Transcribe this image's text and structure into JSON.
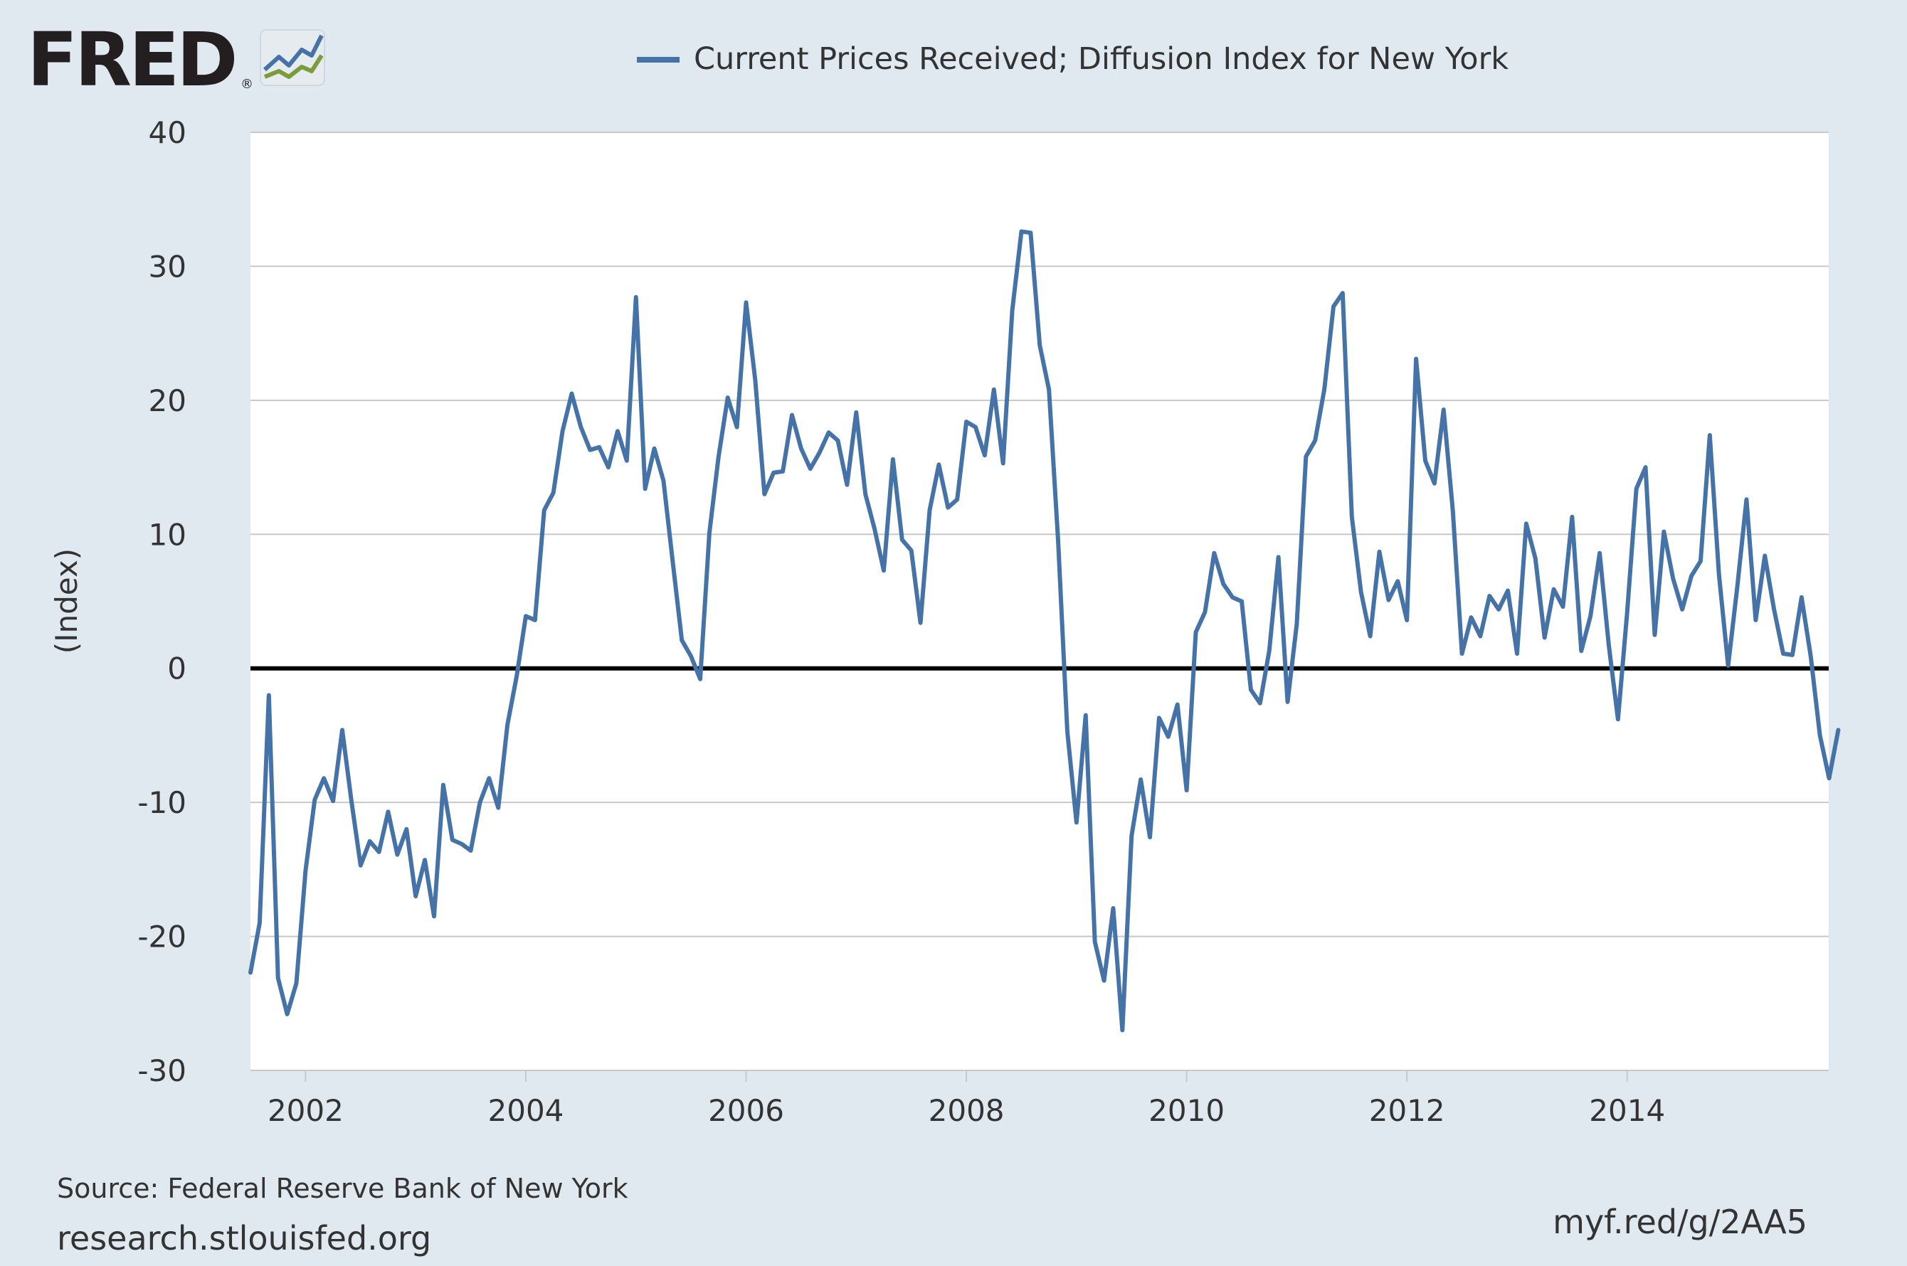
{
  "brand": {
    "name": "FRED",
    "registered_mark": "®"
  },
  "legend": {
    "label": "Current Prices Received; Diffusion Index for New York"
  },
  "colors": {
    "background": "#e1e9f0",
    "plot_background": "#ffffff",
    "series_line": "#4572a7",
    "zero_line": "#000000",
    "grid": "#c8c8c8",
    "brand_text": "#231f20",
    "logo_blue": "#4572a7",
    "logo_green": "#7a9c3b",
    "text": "#333333"
  },
  "footer": {
    "source": "Source: Federal Reserve Bank of New York",
    "site": "research.stlouisfed.org",
    "short_url": "myf.red/g/2AA5"
  },
  "chart_data": {
    "type": "line",
    "title": "Current Prices Received; Diffusion Index for New York",
    "xlabel": "",
    "ylabel": "(Index)",
    "ylim": [
      -30,
      40
    ],
    "xlim": [
      2001.5,
      2015.83
    ],
    "yticks": [
      -30,
      -20,
      -10,
      0,
      10,
      20,
      30,
      40
    ],
    "xticks": [
      2002,
      2004,
      2006,
      2008,
      2010,
      2012,
      2014
    ],
    "grid": true,
    "zero_line": true,
    "legend_position": "top-center",
    "series": [
      {
        "name": "Current Prices Received; Diffusion Index for New York",
        "frequency": "monthly",
        "start": "2001-07",
        "values": [
          -22.7,
          -19.0,
          -2.0,
          -23.1,
          -25.8,
          -23.5,
          -15.1,
          -9.8,
          -8.2,
          -9.9,
          -4.6,
          -9.9,
          -14.7,
          -12.9,
          -13.7,
          -10.7,
          -13.9,
          -12.0,
          -17.0,
          -14.3,
          -18.5,
          -8.7,
          -12.8,
          -13.1,
          -13.6,
          -10.0,
          -8.2,
          -10.4,
          -4.2,
          -0.6,
          3.9,
          3.6,
          11.8,
          13.1,
          17.7,
          20.5,
          18.0,
          16.3,
          16.5,
          15.0,
          17.7,
          15.5,
          27.7,
          13.4,
          16.4,
          14.0,
          8.0,
          2.1,
          0.9,
          -0.8,
          10.1,
          15.8,
          20.2,
          18.0,
          27.3,
          21.5,
          13.0,
          14.6,
          14.7,
          18.9,
          16.4,
          14.9,
          16.1,
          17.6,
          17.0,
          13.7,
          19.1,
          13.0,
          10.4,
          7.3,
          15.6,
          9.6,
          8.8,
          3.4,
          11.8,
          15.2,
          12.0,
          12.6,
          18.4,
          18.0,
          15.9,
          20.8,
          15.3,
          26.7,
          32.6,
          32.5,
          24.1,
          20.8,
          9.5,
          -4.7,
          -11.5,
          -3.5,
          -20.4,
          -23.3,
          -17.9,
          -27.0,
          -12.5,
          -8.3,
          -12.6,
          -3.7,
          -5.1,
          -2.7,
          -9.1,
          2.7,
          4.2,
          8.6,
          6.3,
          5.3,
          5.0,
          -1.6,
          -2.6,
          1.3,
          8.3,
          -2.5,
          3.3,
          15.8,
          17.0,
          20.8,
          27.0,
          28.0,
          11.3,
          5.7,
          2.4,
          8.7,
          5.1,
          6.5,
          3.6,
          23.1,
          15.5,
          13.8,
          19.3,
          11.8,
          1.1,
          3.8,
          2.4,
          5.4,
          4.4,
          5.8,
          1.1,
          10.8,
          8.2,
          2.3,
          5.9,
          4.6,
          11.3,
          1.3,
          3.9,
          8.6,
          1.7,
          -3.8,
          4.2,
          13.4,
          15.0,
          2.5,
          10.2,
          6.7,
          4.4,
          6.9,
          8.0,
          17.4,
          7.0,
          0.2,
          6.1,
          12.6,
          3.6,
          8.4,
          4.4,
          1.1,
          1.0,
          5.3,
          0.9,
          -5.0,
          -8.2,
          -4.6
        ]
      }
    ]
  }
}
